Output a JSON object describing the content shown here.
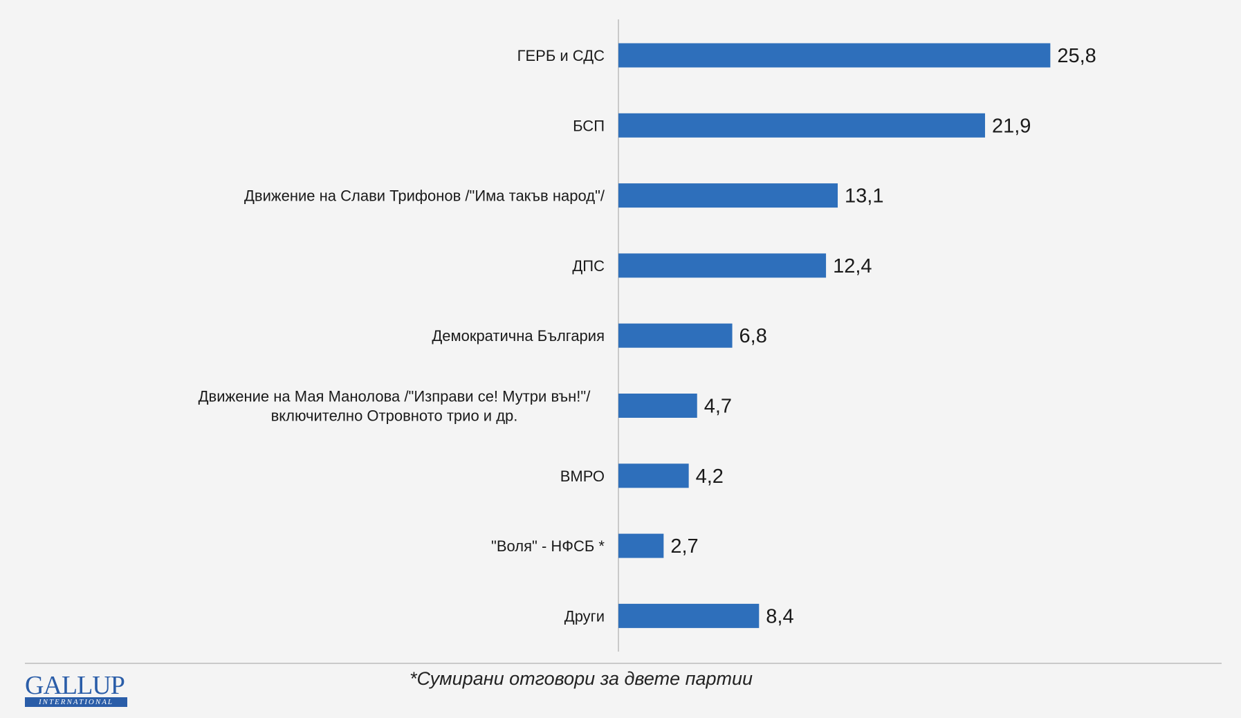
{
  "chart_data": {
    "type": "bar",
    "orientation": "horizontal",
    "categories": [
      [
        "ГЕРБ и СДС"
      ],
      [
        "БСП"
      ],
      [
        "Движение на Слави Трифонов /\"Има такъв народ\"/"
      ],
      [
        "ДПС"
      ],
      [
        "Демократична България"
      ],
      [
        "Движение на Мая Манолова /\"Изправи се! Мутри вън!\"/",
        "включително Отровното трио и др."
      ],
      [
        "ВМРО"
      ],
      [
        "\"Воля\" - НФСБ *"
      ],
      [
        "Други"
      ]
    ],
    "values": [
      25.8,
      21.9,
      13.1,
      12.4,
      6.8,
      4.7,
      4.2,
      2.7,
      8.4
    ],
    "value_labels": [
      "25,8",
      "21,9",
      "13,1",
      "12,4",
      "6,8",
      "4,7",
      "4,2",
      "2,7",
      "8,4"
    ],
    "xlim": [
      0,
      30
    ],
    "bar_color": "#2e6fbb",
    "axis_color": "#c9c9c9",
    "grid": false,
    "legend": "none"
  },
  "footnote": "*Сумирани отговори за двете партии",
  "logo": {
    "word": "GALLUP",
    "subtitle": "INTERNATIONAL",
    "color": "#2a5da8"
  }
}
